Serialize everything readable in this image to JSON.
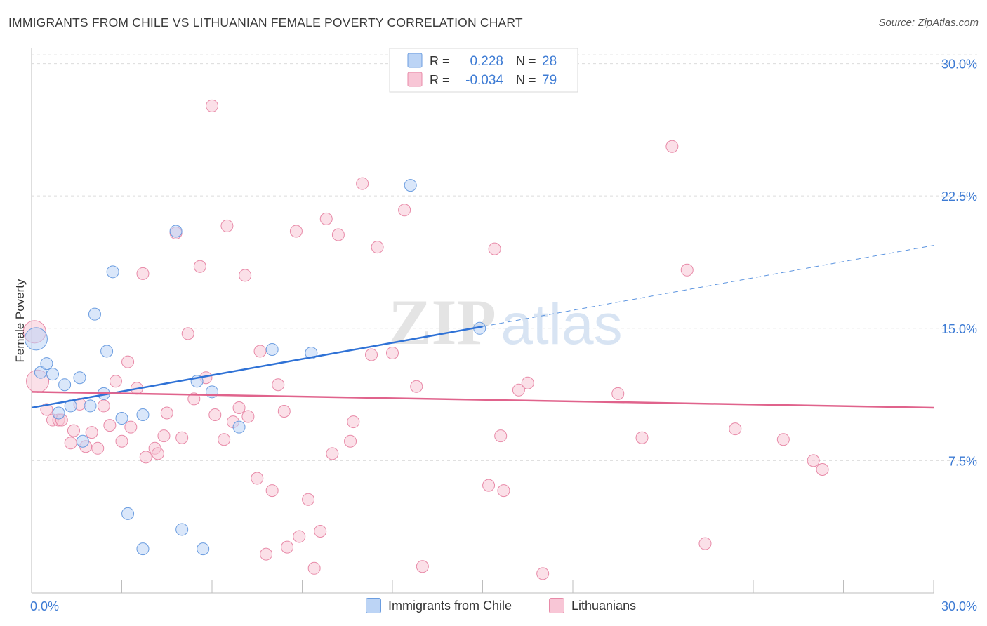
{
  "header": {
    "title": "IMMIGRANTS FROM CHILE VS LITHUANIAN FEMALE POVERTY CORRELATION CHART",
    "source": "Source: ZipAtlas.com"
  },
  "watermark": {
    "part1": "ZIP",
    "part2": "atlas"
  },
  "stats_legend": {
    "rows": [
      {
        "r_label": "R =",
        "r_value": "0.228",
        "n_label": "N =",
        "n_value": "28",
        "color": "#6b9de0",
        "fill": "#bcd4f5"
      },
      {
        "r_label": "R =",
        "r_value": "-0.034",
        "n_label": "N =",
        "n_value": "79",
        "color": "#e88aa8",
        "fill": "#f8c6d6"
      }
    ]
  },
  "chart_data": {
    "type": "scatter",
    "title": "IMMIGRANTS FROM CHILE VS LITHUANIAN FEMALE POVERTY CORRELATION CHART",
    "xlabel": "",
    "ylabel": "Female Poverty",
    "xlim": [
      0,
      30
    ],
    "ylim": [
      0,
      30.5
    ],
    "x_tick_labels": [
      "0.0%",
      "30.0%"
    ],
    "y_ticks": [
      7.5,
      15.0,
      22.5,
      30.0
    ],
    "y_tick_labels": [
      "7.5%",
      "15.0%",
      "22.5%",
      "30.0%"
    ],
    "grid": "horizontal dashed",
    "legend_position": "bottom",
    "series": [
      {
        "name": "Immigrants from Chile",
        "color": "#6b9de0",
        "fill": "#bcd4f5",
        "trend": {
          "x0": 0,
          "y0": 10.5,
          "x1_solid": 15,
          "y1_solid": 15.1,
          "x1_dashed": 30,
          "y1_dashed": 19.7
        },
        "points": [
          [
            0.15,
            14.4
          ],
          [
            0.3,
            12.5
          ],
          [
            0.5,
            13.0
          ],
          [
            0.7,
            12.4
          ],
          [
            0.9,
            10.2
          ],
          [
            1.1,
            11.8
          ],
          [
            1.3,
            10.6
          ],
          [
            1.6,
            12.2
          ],
          [
            1.7,
            8.6
          ],
          [
            1.95,
            10.6
          ],
          [
            2.1,
            15.8
          ],
          [
            2.4,
            11.3
          ],
          [
            2.5,
            13.7
          ],
          [
            2.7,
            18.2
          ],
          [
            3.0,
            9.9
          ],
          [
            3.2,
            4.5
          ],
          [
            3.7,
            2.5
          ],
          [
            3.7,
            10.1
          ],
          [
            4.8,
            20.5
          ],
          [
            5.0,
            3.6
          ],
          [
            5.5,
            12.0
          ],
          [
            5.7,
            2.5
          ],
          [
            6.0,
            11.4
          ],
          [
            6.9,
            9.4
          ],
          [
            8.0,
            13.8
          ],
          [
            9.3,
            13.6
          ],
          [
            12.6,
            23.1
          ],
          [
            14.9,
            15.0
          ]
        ]
      },
      {
        "name": "Lithuanians",
        "color": "#e88aa8",
        "fill": "#f8c6d6",
        "trend": {
          "x0": 0,
          "y0": 11.4,
          "x1": 30,
          "y1": 10.5
        },
        "points": [
          [
            0.2,
            12.0
          ],
          [
            0.5,
            10.4
          ],
          [
            0.7,
            9.8
          ],
          [
            0.9,
            9.8
          ],
          [
            1.0,
            9.8
          ],
          [
            1.3,
            8.5
          ],
          [
            1.4,
            9.2
          ],
          [
            1.6,
            10.7
          ],
          [
            1.8,
            8.3
          ],
          [
            2.0,
            9.1
          ],
          [
            2.2,
            8.2
          ],
          [
            2.4,
            10.6
          ],
          [
            2.6,
            9.5
          ],
          [
            2.8,
            12.0
          ],
          [
            3.0,
            8.6
          ],
          [
            3.2,
            13.1
          ],
          [
            3.3,
            9.4
          ],
          [
            3.5,
            11.6
          ],
          [
            3.7,
            18.1
          ],
          [
            3.8,
            7.7
          ],
          [
            4.1,
            8.2
          ],
          [
            4.2,
            7.9
          ],
          [
            4.4,
            8.9
          ],
          [
            4.5,
            10.2
          ],
          [
            4.8,
            20.4
          ],
          [
            5.0,
            8.8
          ],
          [
            5.2,
            14.7
          ],
          [
            5.4,
            11.0
          ],
          [
            5.6,
            18.5
          ],
          [
            5.8,
            12.2
          ],
          [
            6.0,
            27.6
          ],
          [
            6.1,
            10.1
          ],
          [
            6.4,
            8.7
          ],
          [
            6.5,
            20.8
          ],
          [
            6.7,
            9.7
          ],
          [
            6.9,
            10.5
          ],
          [
            7.1,
            18.0
          ],
          [
            7.2,
            10.0
          ],
          [
            7.5,
            6.5
          ],
          [
            7.6,
            13.7
          ],
          [
            7.8,
            2.2
          ],
          [
            8.0,
            5.8
          ],
          [
            8.2,
            11.8
          ],
          [
            8.4,
            10.3
          ],
          [
            8.5,
            2.6
          ],
          [
            8.8,
            20.5
          ],
          [
            8.9,
            3.2
          ],
          [
            9.2,
            5.3
          ],
          [
            9.4,
            1.4
          ],
          [
            9.6,
            3.5
          ],
          [
            9.8,
            21.2
          ],
          [
            10.0,
            7.9
          ],
          [
            10.2,
            20.3
          ],
          [
            10.6,
            8.6
          ],
          [
            10.7,
            9.7
          ],
          [
            11.0,
            23.2
          ],
          [
            11.3,
            13.5
          ],
          [
            11.5,
            19.6
          ],
          [
            12.0,
            13.6
          ],
          [
            12.4,
            21.7
          ],
          [
            12.8,
            11.7
          ],
          [
            13.0,
            1.5
          ],
          [
            15.2,
            6.1
          ],
          [
            15.4,
            19.5
          ],
          [
            15.6,
            8.9
          ],
          [
            15.7,
            5.8
          ],
          [
            16.2,
            11.5
          ],
          [
            16.5,
            11.9
          ],
          [
            17.0,
            1.1
          ],
          [
            19.5,
            11.3
          ],
          [
            20.3,
            8.8
          ],
          [
            21.3,
            25.3
          ],
          [
            21.8,
            18.3
          ],
          [
            22.4,
            2.8
          ],
          [
            23.4,
            9.3
          ],
          [
            25.0,
            8.7
          ],
          [
            26.0,
            7.5
          ],
          [
            26.3,
            7.0
          ],
          [
            0.1,
            14.8
          ]
        ]
      }
    ]
  },
  "bottom_legend": {
    "items": [
      {
        "label": "Immigrants from Chile",
        "color": "#6b9de0",
        "fill": "#bcd4f5"
      },
      {
        "label": "Lithuanians",
        "color": "#e88aa8",
        "fill": "#f8c6d6"
      }
    ]
  }
}
